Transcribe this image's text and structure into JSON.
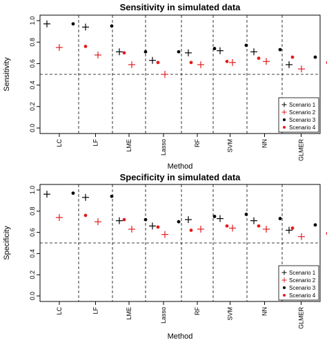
{
  "chart_data": [
    {
      "type": "scatter",
      "title": "Sensitivity in simulated data",
      "xlabel": "Method",
      "ylabel": "Sensitivity",
      "ylim": [
        0,
        1
      ],
      "yticks": [
        "0.0",
        "0.2",
        "0.4",
        "0.6",
        "0.8",
        "1.0"
      ],
      "categories": [
        "LC",
        "LF",
        "LME",
        "Lasso",
        "RF",
        "SVM",
        "NN",
        "GLMER"
      ],
      "reference_line": 0.5,
      "legend_position": "bottom-right",
      "series": [
        {
          "name": "Scenario 1",
          "marker": "plus",
          "color": "#000000",
          "values": [
            0.97,
            0.94,
            0.71,
            0.63,
            0.7,
            0.72,
            0.71,
            0.59
          ]
        },
        {
          "name": "Scenario 2",
          "marker": "plus",
          "color": "#e41a1c",
          "values": [
            0.75,
            0.68,
            0.59,
            0.5,
            0.59,
            0.61,
            0.62,
            0.55
          ]
        },
        {
          "name": "Scenario 3",
          "marker": "dot",
          "color": "#000000",
          "values": [
            0.97,
            0.95,
            0.71,
            0.71,
            0.74,
            0.77,
            0.73,
            0.66
          ]
        },
        {
          "name": "Scenario 4",
          "marker": "dot",
          "color": "#e41a1c",
          "values": [
            0.76,
            0.7,
            0.61,
            0.61,
            0.62,
            0.65,
            0.66,
            0.61
          ]
        }
      ]
    },
    {
      "type": "scatter",
      "title": "Specificity in simulated data",
      "xlabel": "Method",
      "ylabel": "Specificity",
      "ylim": [
        0,
        1
      ],
      "yticks": [
        "0.0",
        "0.2",
        "0.4",
        "0.6",
        "0.8",
        "1.0"
      ],
      "categories": [
        "LC",
        "LF",
        "LME",
        "Lasso",
        "RF",
        "SVM",
        "NN",
        "GLMER"
      ],
      "reference_line": 0.5,
      "legend_position": "bottom-right",
      "series": [
        {
          "name": "Scenario 1",
          "marker": "plus",
          "color": "#000000",
          "values": [
            0.96,
            0.93,
            0.71,
            0.66,
            0.72,
            0.73,
            0.71,
            0.62
          ]
        },
        {
          "name": "Scenario 2",
          "marker": "plus",
          "color": "#e41a1c",
          "values": [
            0.74,
            0.7,
            0.63,
            0.58,
            0.63,
            0.64,
            0.63,
            0.56
          ]
        },
        {
          "name": "Scenario 3",
          "marker": "dot",
          "color": "#000000",
          "values": [
            0.97,
            0.94,
            0.72,
            0.7,
            0.75,
            0.77,
            0.73,
            0.67
          ]
        },
        {
          "name": "Scenario 4",
          "marker": "dot",
          "color": "#e41a1c",
          "values": [
            0.76,
            0.72,
            0.65,
            0.62,
            0.66,
            0.66,
            0.64,
            0.59
          ]
        }
      ]
    }
  ]
}
